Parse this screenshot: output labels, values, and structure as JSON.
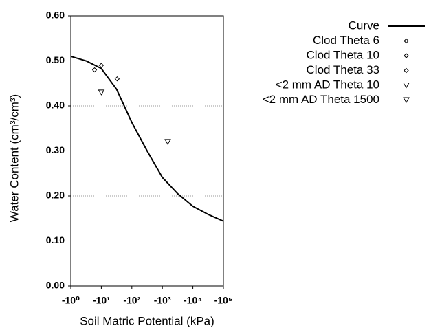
{
  "chart_data": {
    "type": "scatter",
    "x_label": "Soil Matric Potential (kPa)",
    "y_label": "Water Content (cm³/cm³)",
    "x_log": true,
    "grid": true,
    "legend": "right",
    "xlim": [
      -1,
      -100000
    ],
    "xticks": [
      {
        "value": -1,
        "label": "-10⁰"
      },
      {
        "value": -10,
        "label": "-10¹"
      },
      {
        "value": -100,
        "label": "-10²"
      },
      {
        "value": -1000,
        "label": "-10³"
      },
      {
        "value": -10000,
        "label": "-10⁴"
      },
      {
        "value": -100000,
        "label": "-10⁵"
      }
    ],
    "ylim": [
      0,
      0.6
    ],
    "yticks": [
      {
        "value": 0,
        "label": "0.00"
      },
      {
        "value": 0.1,
        "label": "0.10"
      },
      {
        "value": 0.2,
        "label": "0.20"
      },
      {
        "value": 0.3,
        "label": "0.30"
      },
      {
        "value": 0.4,
        "label": "0.40"
      },
      {
        "value": 0.5,
        "label": "0.50"
      },
      {
        "value": 0.6,
        "label": "0.60"
      }
    ],
    "series": [
      {
        "name": "Curve",
        "color": "#000000",
        "mode": "line",
        "x": [
          -1,
          -3.16,
          -10,
          -31.6,
          -100,
          -316,
          -1000,
          -3162,
          -10000,
          -31623,
          -100000
        ],
        "values": [
          0.51,
          0.5,
          0.483,
          0.437,
          0.363,
          0.3,
          0.241,
          0.205,
          0.177,
          0.159,
          0.144
        ]
      },
      {
        "name": "Clod Theta 6",
        "color": "#000000",
        "mode": "markers",
        "marker": "diamond",
        "x": [
          -6
        ],
        "values": [
          0.48
        ]
      },
      {
        "name": "Clod Theta 10",
        "color": "#000000",
        "mode": "markers",
        "marker": "diamond",
        "x": [
          -10
        ],
        "values": [
          0.49
        ]
      },
      {
        "name": "Clod Theta 33",
        "color": "#000000",
        "mode": "markers",
        "marker": "diamond",
        "x": [
          -33
        ],
        "values": [
          0.46
        ]
      },
      {
        "name": "<2 mm AD Theta 10",
        "color": "#000000",
        "mode": "markers",
        "marker": "triangle-down",
        "x": [
          -10
        ],
        "values": [
          0.43
        ]
      },
      {
        "name": "<2 mm AD Theta 1500",
        "color": "#000000",
        "mode": "markers",
        "marker": "triangle-down",
        "x": [
          -1500
        ],
        "values": [
          0.32
        ]
      }
    ]
  }
}
